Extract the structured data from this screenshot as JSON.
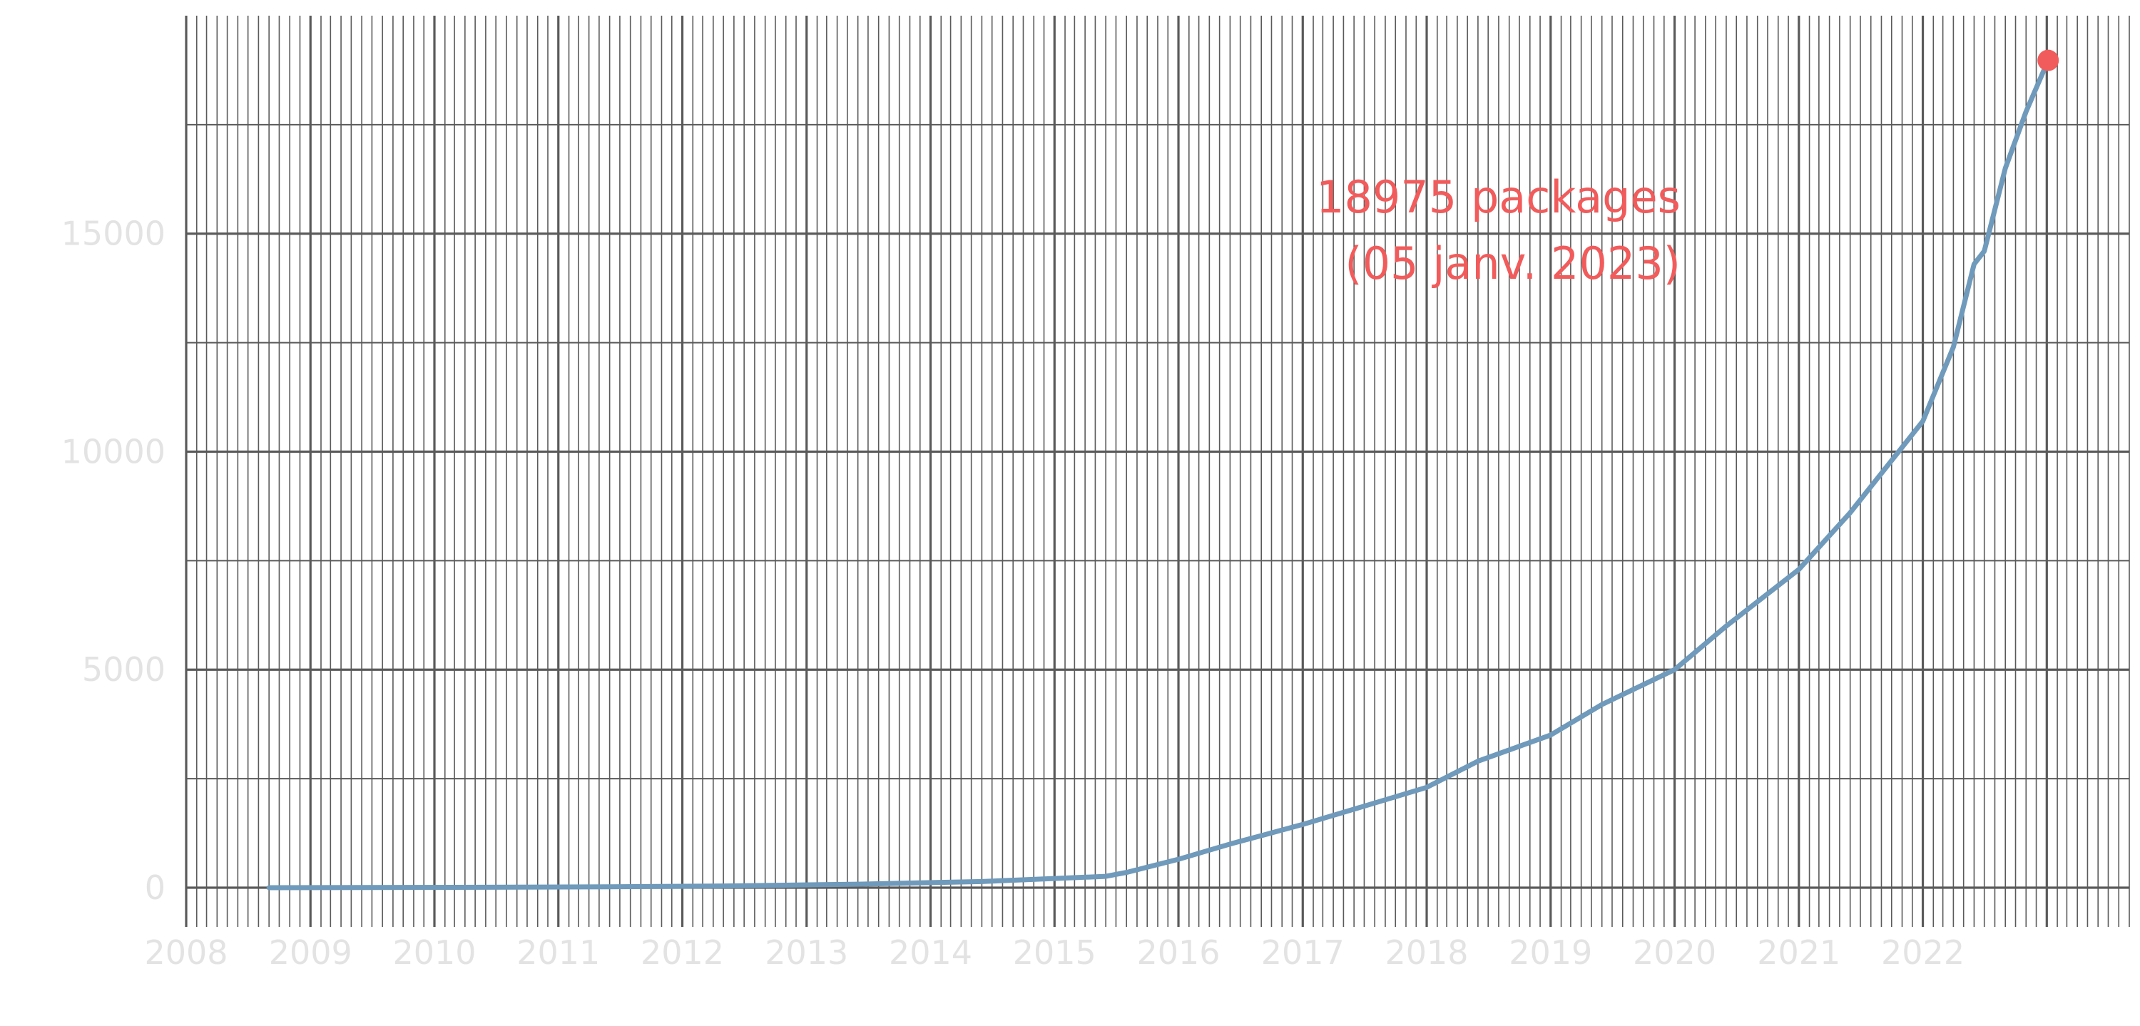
{
  "chart_data": {
    "type": "line",
    "title": "",
    "xlabel": "",
    "ylabel": "",
    "x_ticks": [
      "2008",
      "2009",
      "2010",
      "2011",
      "2012",
      "2013",
      "2014",
      "2015",
      "2016",
      "2017",
      "2018",
      "2019",
      "2020",
      "2021",
      "2022"
    ],
    "y_ticks": [
      "0",
      "5000",
      "10000",
      "15000"
    ],
    "xlim": [
      "2008-01-01",
      "2023-09-01"
    ],
    "ylim": [
      -900,
      20000
    ],
    "grid": {
      "major_y": [
        0,
        5000,
        10000,
        15000
      ],
      "minor_y": [
        2500,
        7500,
        12500,
        17500
      ],
      "x_monthly_lines": true,
      "x_year_lines": true
    },
    "series": [
      {
        "color": "#6f9abb",
        "x": [
          "2008-09-01",
          "2009-06-01",
          "2010-06-01",
          "2011-06-01",
          "2012-06-01",
          "2013-06-01",
          "2014-06-01",
          "2015-01-01",
          "2015-06-01",
          "2015-08-01",
          "2016-01-01",
          "2016-06-01",
          "2017-01-01",
          "2017-06-01",
          "2018-01-01",
          "2018-06-01",
          "2019-01-01",
          "2019-06-01",
          "2020-01-01",
          "2020-06-01",
          "2021-01-01",
          "2021-06-01",
          "2022-01-01",
          "2022-04-01",
          "2022-06-01",
          "2022-07-01",
          "2022-09-01",
          "2022-11-01",
          "2023-01-05"
        ],
        "y": [
          0,
          5,
          10,
          20,
          40,
          80,
          140,
          210,
          260,
          350,
          650,
          1000,
          1450,
          1800,
          2300,
          2900,
          3500,
          4200,
          5000,
          6000,
          7300,
          8600,
          10700,
          12400,
          14300,
          14600,
          16500,
          17800,
          18975
        ]
      }
    ],
    "highlight_point": {
      "x": "2023-01-05",
      "y": 18975,
      "color": "#f25b5b"
    },
    "annotation": {
      "lines": [
        "18975 packages",
        "(05 janv. 2023)"
      ],
      "color": "#f25b5b"
    },
    "colors": {
      "grid": "#5a5a5a",
      "line": "#6f9abb",
      "highlight": "#f25b5b",
      "tick_label": "#e3e3e3",
      "background": "#ffffff"
    }
  }
}
